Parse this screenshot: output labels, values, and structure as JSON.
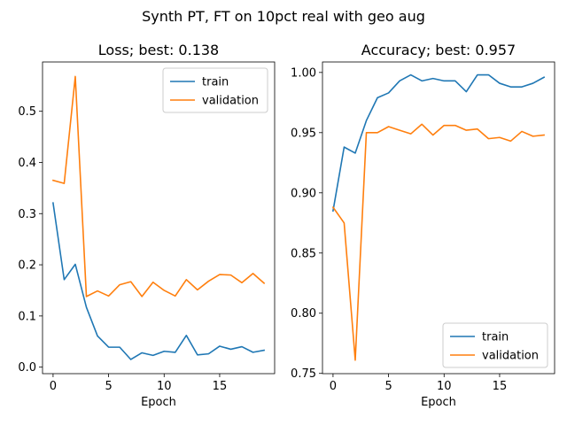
{
  "figure": {
    "suptitle": "Synth PT, FT on 10pct real with geo aug",
    "colors": {
      "train": "#1f77b4",
      "validation": "#ff7f0e"
    }
  },
  "chart_data": [
    {
      "type": "line",
      "title": "Loss; best: 0.138",
      "xlabel": "Epoch",
      "ylabel": "",
      "xlim": [
        -0.95,
        19.95
      ],
      "ylim": [
        -0.0127,
        0.5963
      ],
      "xticks": [
        0,
        5,
        10,
        15
      ],
      "yticks": [
        0.0,
        0.1,
        0.2,
        0.3,
        0.4,
        0.5
      ],
      "ytick_labels": [
        "0.0",
        "0.1",
        "0.2",
        "0.3",
        "0.4",
        "0.5"
      ],
      "legend": "top-right",
      "x": [
        0,
        1,
        2,
        3,
        4,
        5,
        6,
        7,
        8,
        9,
        10,
        11,
        12,
        13,
        14,
        15,
        16,
        17,
        18,
        19
      ],
      "series": [
        {
          "name": "train",
          "values": [
            0.321,
            0.171,
            0.201,
            0.117,
            0.061,
            0.039,
            0.039,
            0.015,
            0.028,
            0.023,
            0.031,
            0.029,
            0.062,
            0.024,
            0.026,
            0.041,
            0.035,
            0.04,
            0.029,
            0.033
          ]
        },
        {
          "name": "validation",
          "values": [
            0.365,
            0.359,
            0.568,
            0.138,
            0.149,
            0.139,
            0.161,
            0.167,
            0.138,
            0.166,
            0.15,
            0.139,
            0.171,
            0.151,
            0.168,
            0.181,
            0.18,
            0.165,
            0.183,
            0.164
          ]
        }
      ]
    },
    {
      "type": "line",
      "title": "Accuracy; best: 0.957",
      "xlabel": "Epoch",
      "ylabel": "",
      "xlim": [
        -0.95,
        19.95
      ],
      "ylim": [
        0.7498,
        1.0087
      ],
      "xticks": [
        0,
        5,
        10,
        15
      ],
      "yticks": [
        0.75,
        0.8,
        0.85,
        0.9,
        0.95,
        1.0
      ],
      "ytick_labels": [
        "0.75",
        "0.80",
        "0.85",
        "0.90",
        "0.95",
        "1.00"
      ],
      "legend": "bottom-right",
      "x": [
        0,
        1,
        2,
        3,
        4,
        5,
        6,
        7,
        8,
        9,
        10,
        11,
        12,
        13,
        14,
        15,
        16,
        17,
        18,
        19
      ],
      "series": [
        {
          "name": "train",
          "values": [
            0.885,
            0.938,
            0.933,
            0.96,
            0.979,
            0.983,
            0.993,
            0.998,
            0.993,
            0.995,
            0.993,
            0.993,
            0.984,
            0.998,
            0.998,
            0.991,
            0.988,
            0.988,
            0.991,
            0.996
          ]
        },
        {
          "name": "validation",
          "values": [
            0.888,
            0.875,
            0.761,
            0.95,
            0.95,
            0.955,
            0.952,
            0.949,
            0.957,
            0.948,
            0.956,
            0.956,
            0.952,
            0.953,
            0.945,
            0.946,
            0.943,
            0.951,
            0.947,
            0.948
          ]
        }
      ]
    }
  ]
}
